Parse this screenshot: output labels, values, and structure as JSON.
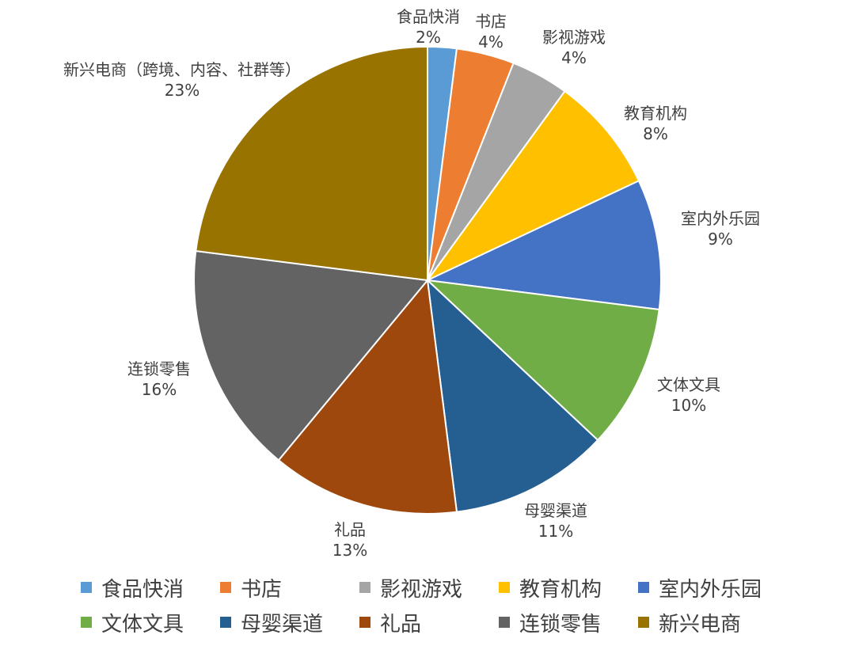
{
  "chart_data": {
    "type": "pie",
    "title": "",
    "slices": [
      {
        "name": "食品快消",
        "label": "食品快消",
        "value": 2,
        "pct_label": "2%",
        "color": "#5B9BD5"
      },
      {
        "name": "书店",
        "label": "书店",
        "value": 4,
        "pct_label": "4%",
        "color": "#ED7D31"
      },
      {
        "name": "影视游戏",
        "label": "影视游戏",
        "value": 4,
        "pct_label": "4%",
        "color": "#A5A5A5"
      },
      {
        "name": "教育机构",
        "label": "教育机构",
        "value": 8,
        "pct_label": "8%",
        "color": "#FFC000"
      },
      {
        "name": "室内外乐园",
        "label": "室内外乐园",
        "value": 9,
        "pct_label": "9%",
        "color": "#4472C4"
      },
      {
        "name": "文体文具",
        "label": "文体文具",
        "value": 10,
        "pct_label": "10%",
        "color": "#70AD47"
      },
      {
        "name": "母婴渠道",
        "label": "母婴渠道",
        "value": 11,
        "pct_label": "11%",
        "color": "#255E91"
      },
      {
        "name": "礼品",
        "label": "礼品",
        "value": 13,
        "pct_label": "13%",
        "color": "#9E480E"
      },
      {
        "name": "连锁零售",
        "label": "连锁零售",
        "value": 16,
        "pct_label": "16%",
        "color": "#636363"
      },
      {
        "name": "新兴电商",
        "label": "新兴电商（跨境、内容、社群等）",
        "value": 23,
        "pct_label": "23%",
        "color": "#997300"
      }
    ],
    "legend_position": "bottom"
  }
}
